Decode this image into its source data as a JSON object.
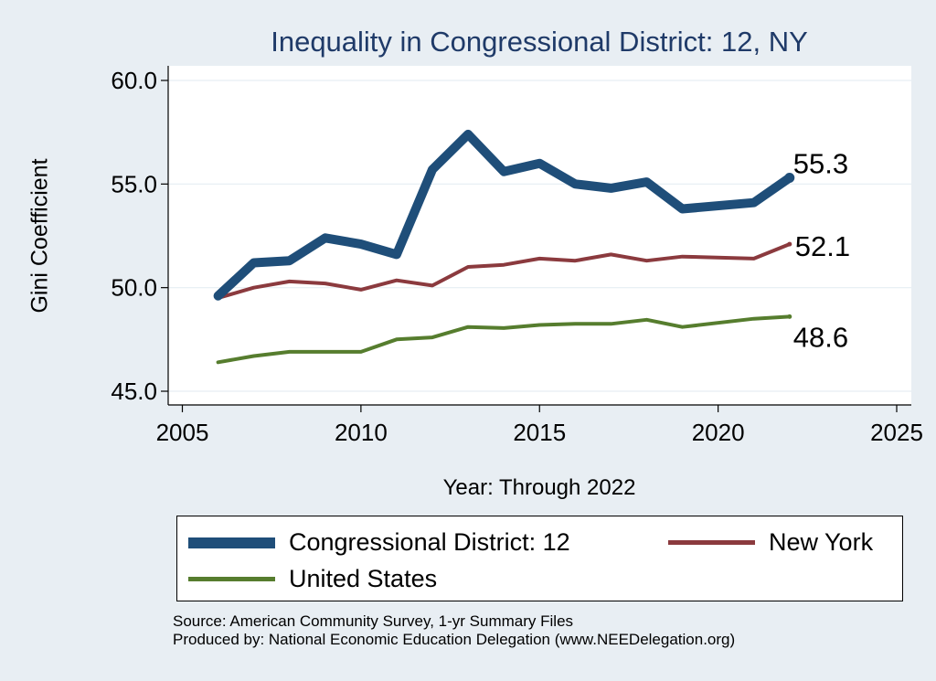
{
  "chart_data": {
    "type": "line",
    "title": "Inequality in Congressional District:  12, NY",
    "xlabel": "Year: Through 2022",
    "ylabel": "Gini Coefficient",
    "xlim": [
      2005,
      2025
    ],
    "ylim": [
      45,
      60
    ],
    "x_ticks": [
      "2005",
      "2010",
      "2015",
      "2020",
      "2025"
    ],
    "y_ticks": [
      "45.0",
      "50.0",
      "55.0",
      "60.0"
    ],
    "grid": true,
    "legend_position": "bottom",
    "x": [
      2006,
      2007,
      2008,
      2009,
      2010,
      2011,
      2012,
      2013,
      2014,
      2015,
      2016,
      2017,
      2018,
      2019,
      2021,
      2022
    ],
    "series": [
      {
        "name": "Congressional District:  12",
        "color": "#1f4e79",
        "values": [
          49.6,
          51.2,
          51.3,
          52.4,
          52.1,
          51.6,
          55.7,
          57.4,
          55.6,
          56.0,
          55.0,
          54.8,
          55.1,
          53.8,
          54.1,
          55.3
        ],
        "end_label": "55.3"
      },
      {
        "name": "New York",
        "color": "#8b3a3e",
        "values": [
          49.5,
          50.0,
          50.3,
          50.2,
          49.9,
          50.35,
          50.1,
          51.0,
          51.1,
          51.4,
          51.3,
          51.6,
          51.3,
          51.5,
          51.4,
          52.1
        ],
        "end_label": "52.1"
      },
      {
        "name": "United States",
        "color": "#567d2e",
        "values": [
          46.4,
          46.7,
          46.9,
          46.9,
          46.9,
          47.5,
          47.6,
          48.1,
          48.05,
          48.2,
          48.25,
          48.25,
          48.45,
          48.1,
          48.5,
          48.6
        ],
        "end_label": "48.6"
      }
    ]
  },
  "source": {
    "line1": "Source: American Community Survey, 1-yr Summary Files",
    "line2": "Produced by: National Economic Education Delegation (www.NEEDelegation.org)"
  }
}
